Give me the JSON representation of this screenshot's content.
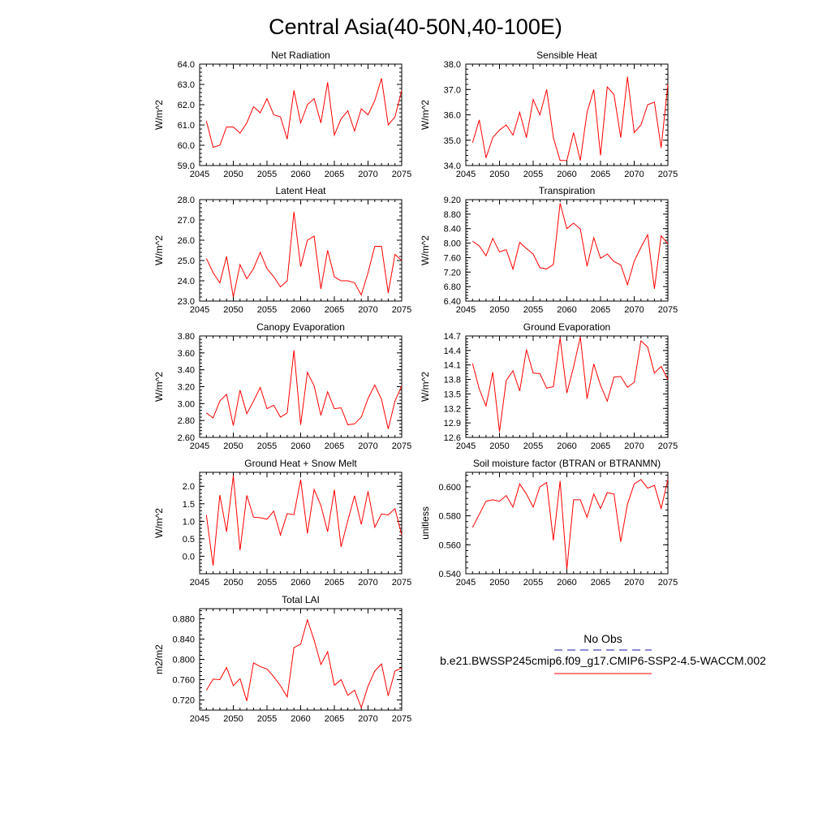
{
  "title": "Central Asia(40-50N,40-100E)",
  "legend": {
    "obs_label": "No Obs",
    "model_label": "b.e21.BWSSP245cmip6.f09_g17.CMIP6-SSP2-4.5-WACCM.002",
    "obs_color": "#1a1aa6",
    "model_color": "#ff0000"
  },
  "chart_data": [
    {
      "type": "line",
      "title": "Net Radiation",
      "ylabel": "W/m^2",
      "xlim": [
        2045,
        2075
      ],
      "ylim": [
        59.0,
        64.0
      ],
      "xticks": [
        2045,
        2050,
        2055,
        2060,
        2065,
        2070,
        2075
      ],
      "yticks": [
        "59.0",
        "60.0",
        "61.0",
        "62.0",
        "63.0",
        "64.0"
      ],
      "series": [
        {
          "color": "#ff0000",
          "x": [
            2046,
            2047,
            2048,
            2049,
            2050,
            2051,
            2052,
            2053,
            2054,
            2055,
            2056,
            2057,
            2058,
            2059,
            2060,
            2061,
            2062,
            2063,
            2064,
            2065,
            2066,
            2067,
            2068,
            2069,
            2070,
            2071,
            2072,
            2073,
            2074,
            2075
          ],
          "y": [
            61.2,
            59.9,
            60.0,
            60.9,
            60.9,
            60.6,
            61.1,
            61.9,
            61.6,
            62.3,
            61.5,
            61.4,
            60.3,
            62.7,
            61.1,
            62.0,
            62.3,
            61.1,
            63.1,
            60.5,
            61.3,
            61.7,
            60.7,
            61.8,
            61.5,
            62.2,
            63.3,
            61.0,
            61.4,
            62.7
          ]
        }
      ]
    },
    {
      "type": "line",
      "title": "Sensible Heat",
      "ylabel": "W/m^2",
      "xlim": [
        2045,
        2075
      ],
      "ylim": [
        34.0,
        38.0
      ],
      "xticks": [
        2045,
        2050,
        2055,
        2060,
        2065,
        2070,
        2075
      ],
      "yticks": [
        "34.0",
        "35.0",
        "36.0",
        "37.0",
        "38.0"
      ],
      "series": [
        {
          "color": "#ff0000",
          "x": [
            2046,
            2047,
            2048,
            2049,
            2050,
            2051,
            2052,
            2053,
            2054,
            2055,
            2056,
            2057,
            2058,
            2059,
            2060,
            2061,
            2062,
            2063,
            2064,
            2065,
            2066,
            2067,
            2068,
            2069,
            2070,
            2071,
            2072,
            2073,
            2074,
            2075
          ],
          "y": [
            34.9,
            35.8,
            34.3,
            35.1,
            35.4,
            35.6,
            35.2,
            36.1,
            35.1,
            36.6,
            36.0,
            37.0,
            35.1,
            34.2,
            34.2,
            35.3,
            34.2,
            36.1,
            37.0,
            34.4,
            37.1,
            36.8,
            35.1,
            37.5,
            35.3,
            35.6,
            36.4,
            36.5,
            34.7,
            37.2
          ]
        }
      ]
    },
    {
      "type": "line",
      "title": "Latent Heat",
      "ylabel": "W/m^2",
      "xlim": [
        2045,
        2075
      ],
      "ylim": [
        23.0,
        28.0
      ],
      "xticks": [
        2045,
        2050,
        2055,
        2060,
        2065,
        2070,
        2075
      ],
      "yticks": [
        "23.0",
        "24.0",
        "25.0",
        "26.0",
        "27.0",
        "28.0"
      ],
      "series": [
        {
          "color": "#ff0000",
          "x": [
            2046,
            2047,
            2048,
            2049,
            2050,
            2051,
            2052,
            2053,
            2054,
            2055,
            2056,
            2057,
            2058,
            2059,
            2060,
            2061,
            2062,
            2063,
            2064,
            2065,
            2066,
            2067,
            2068,
            2069,
            2070,
            2071,
            2072,
            2073,
            2074,
            2075
          ],
          "y": [
            25.1,
            24.4,
            23.9,
            25.2,
            23.2,
            24.8,
            24.1,
            24.6,
            25.4,
            24.6,
            24.2,
            23.7,
            24.0,
            27.4,
            24.7,
            26.0,
            26.2,
            23.6,
            25.5,
            24.2,
            24.0,
            24.0,
            23.9,
            23.3,
            24.4,
            25.7,
            25.7,
            23.4,
            25.3,
            25.0
          ]
        }
      ]
    },
    {
      "type": "line",
      "title": "Transpiration",
      "ylabel": "W/m^2",
      "xlim": [
        2045,
        2075
      ],
      "ylim": [
        6.4,
        9.2
      ],
      "xticks": [
        2045,
        2050,
        2055,
        2060,
        2065,
        2070,
        2075
      ],
      "yticks": [
        "6.40",
        "6.80",
        "7.20",
        "7.60",
        "8.00",
        "8.40",
        "8.80",
        "9.20"
      ],
      "series": [
        {
          "color": "#ff0000",
          "x": [
            2046,
            2047,
            2048,
            2049,
            2050,
            2051,
            2052,
            2053,
            2054,
            2055,
            2056,
            2057,
            2058,
            2059,
            2060,
            2061,
            2062,
            2063,
            2064,
            2065,
            2066,
            2067,
            2068,
            2069,
            2070,
            2071,
            2072,
            2073,
            2074,
            2075
          ],
          "y": [
            8.05,
            7.92,
            7.65,
            8.13,
            7.76,
            7.82,
            7.28,
            8.02,
            7.85,
            7.7,
            7.32,
            7.29,
            7.41,
            9.1,
            8.4,
            8.55,
            8.39,
            7.36,
            8.15,
            7.58,
            7.7,
            7.49,
            7.4,
            6.85,
            7.5,
            7.88,
            8.23,
            6.74,
            8.2,
            7.98
          ]
        }
      ]
    },
    {
      "type": "line",
      "title": "Canopy Evaporation",
      "ylabel": "W/m^2",
      "xlim": [
        2045,
        2075
      ],
      "ylim": [
        2.6,
        3.8
      ],
      "xticks": [
        2045,
        2050,
        2055,
        2060,
        2065,
        2070,
        2075
      ],
      "yticks": [
        "2.60",
        "2.80",
        "3.00",
        "3.20",
        "3.40",
        "3.60",
        "3.80"
      ],
      "series": [
        {
          "color": "#ff0000",
          "x": [
            2046,
            2047,
            2048,
            2049,
            2050,
            2051,
            2052,
            2053,
            2054,
            2055,
            2056,
            2057,
            2058,
            2059,
            2060,
            2061,
            2062,
            2063,
            2064,
            2065,
            2066,
            2067,
            2068,
            2069,
            2070,
            2071,
            2072,
            2073,
            2074,
            2075
          ],
          "y": [
            2.89,
            2.83,
            3.03,
            3.11,
            2.74,
            3.16,
            2.88,
            3.03,
            3.19,
            2.94,
            2.98,
            2.84,
            2.89,
            3.63,
            2.75,
            3.37,
            3.21,
            2.86,
            3.14,
            2.94,
            2.95,
            2.75,
            2.76,
            2.84,
            3.06,
            3.22,
            3.05,
            2.7,
            3.03,
            3.21
          ]
        }
      ]
    },
    {
      "type": "line",
      "title": "Ground Evaporation",
      "ylabel": "W/m^2",
      "xlim": [
        2045,
        2075
      ],
      "ylim": [
        12.6,
        14.7
      ],
      "xticks": [
        2045,
        2050,
        2055,
        2060,
        2065,
        2070,
        2075
      ],
      "yticks": [
        "12.6",
        "12.9",
        "13.2",
        "13.5",
        "13.8",
        "14.1",
        "14.4",
        "14.7"
      ],
      "series": [
        {
          "color": "#ff0000",
          "x": [
            2046,
            2047,
            2048,
            2049,
            2050,
            2051,
            2052,
            2053,
            2054,
            2055,
            2056,
            2057,
            2058,
            2059,
            2060,
            2061,
            2062,
            2063,
            2064,
            2065,
            2066,
            2067,
            2068,
            2069,
            2070,
            2071,
            2072,
            2073,
            2074,
            2075
          ],
          "y": [
            14.13,
            13.6,
            13.25,
            13.95,
            12.72,
            13.78,
            13.98,
            13.56,
            14.42,
            13.93,
            13.92,
            13.62,
            13.65,
            14.66,
            13.52,
            14.06,
            14.68,
            13.4,
            14.12,
            13.68,
            13.35,
            13.85,
            13.86,
            13.64,
            13.74,
            14.6,
            14.47,
            13.93,
            14.07,
            13.8
          ]
        }
      ]
    },
    {
      "type": "line",
      "title": "Ground Heat + Snow Melt",
      "ylabel": "W/m^2",
      "xlim": [
        2045,
        2075
      ],
      "ylim": [
        -0.5,
        2.4
      ],
      "xticks": [
        2045,
        2050,
        2055,
        2060,
        2065,
        2070,
        2075
      ],
      "yticks": [
        "0.0",
        "0.5",
        "1.0",
        "1.5",
        "2.0"
      ],
      "ytick_values": [
        0,
        0.5,
        1.0,
        1.5,
        2.0
      ],
      "series": [
        {
          "color": "#ff0000",
          "x": [
            2046,
            2047,
            2048,
            2049,
            2050,
            2051,
            2052,
            2053,
            2054,
            2055,
            2056,
            2057,
            2058,
            2059,
            2060,
            2061,
            2062,
            2063,
            2064,
            2065,
            2066,
            2067,
            2068,
            2069,
            2070,
            2071,
            2072,
            2073,
            2074,
            2075
          ],
          "y": [
            1.18,
            -0.27,
            1.75,
            0.7,
            2.3,
            0.17,
            1.74,
            1.12,
            1.1,
            1.06,
            1.29,
            0.61,
            1.22,
            1.19,
            2.19,
            0.65,
            1.91,
            1.45,
            0.7,
            1.9,
            0.27,
            1.02,
            1.73,
            0.91,
            1.86,
            0.83,
            1.21,
            1.18,
            1.36,
            0.61
          ]
        }
      ]
    },
    {
      "type": "line",
      "title": "Soil moisture factor (BTRAN or BTRANMN)",
      "ylabel": "unitless",
      "xlim": [
        2045,
        2075
      ],
      "ylim": [
        0.54,
        0.61
      ],
      "xticks": [
        2045,
        2050,
        2055,
        2060,
        2065,
        2070,
        2075
      ],
      "yticks": [
        "0.540",
        "0.560",
        "0.580",
        "0.600"
      ],
      "ytick_values": [
        0.54,
        0.56,
        0.58,
        0.6
      ],
      "series": [
        {
          "color": "#ff0000",
          "x": [
            2046,
            2047,
            2048,
            2049,
            2050,
            2051,
            2052,
            2053,
            2054,
            2055,
            2056,
            2057,
            2058,
            2059,
            2060,
            2061,
            2062,
            2063,
            2064,
            2065,
            2066,
            2067,
            2068,
            2069,
            2070,
            2071,
            2072,
            2073,
            2074,
            2075
          ],
          "y": [
            0.572,
            0.581,
            0.59,
            0.591,
            0.59,
            0.594,
            0.586,
            0.602,
            0.595,
            0.586,
            0.6,
            0.603,
            0.563,
            0.604,
            0.543,
            0.591,
            0.591,
            0.579,
            0.595,
            0.585,
            0.596,
            0.595,
            0.562,
            0.588,
            0.602,
            0.605,
            0.599,
            0.601,
            0.585,
            0.605
          ]
        }
      ]
    },
    {
      "type": "line",
      "title": "Total LAI",
      "ylabel": "m2/m2",
      "xlim": [
        2045,
        2075
      ],
      "ylim": [
        0.7,
        0.9
      ],
      "xticks": [
        2045,
        2050,
        2055,
        2060,
        2065,
        2070,
        2075
      ],
      "yticks": [
        "0.720",
        "0.760",
        "0.800",
        "0.840",
        "0.880"
      ],
      "ytick_values": [
        0.72,
        0.76,
        0.8,
        0.84,
        0.88
      ],
      "series": [
        {
          "color": "#ff0000",
          "x": [
            2046,
            2047,
            2048,
            2049,
            2050,
            2051,
            2052,
            2053,
            2054,
            2055,
            2056,
            2057,
            2058,
            2059,
            2060,
            2061,
            2062,
            2063,
            2064,
            2065,
            2066,
            2067,
            2068,
            2069,
            2070,
            2071,
            2072,
            2073,
            2074,
            2075
          ],
          "y": [
            0.739,
            0.761,
            0.76,
            0.784,
            0.748,
            0.762,
            0.718,
            0.793,
            0.786,
            0.781,
            0.766,
            0.748,
            0.726,
            0.823,
            0.83,
            0.878,
            0.838,
            0.79,
            0.815,
            0.749,
            0.76,
            0.729,
            0.739,
            0.705,
            0.747,
            0.777,
            0.791,
            0.728,
            0.777,
            0.783
          ]
        }
      ]
    }
  ]
}
